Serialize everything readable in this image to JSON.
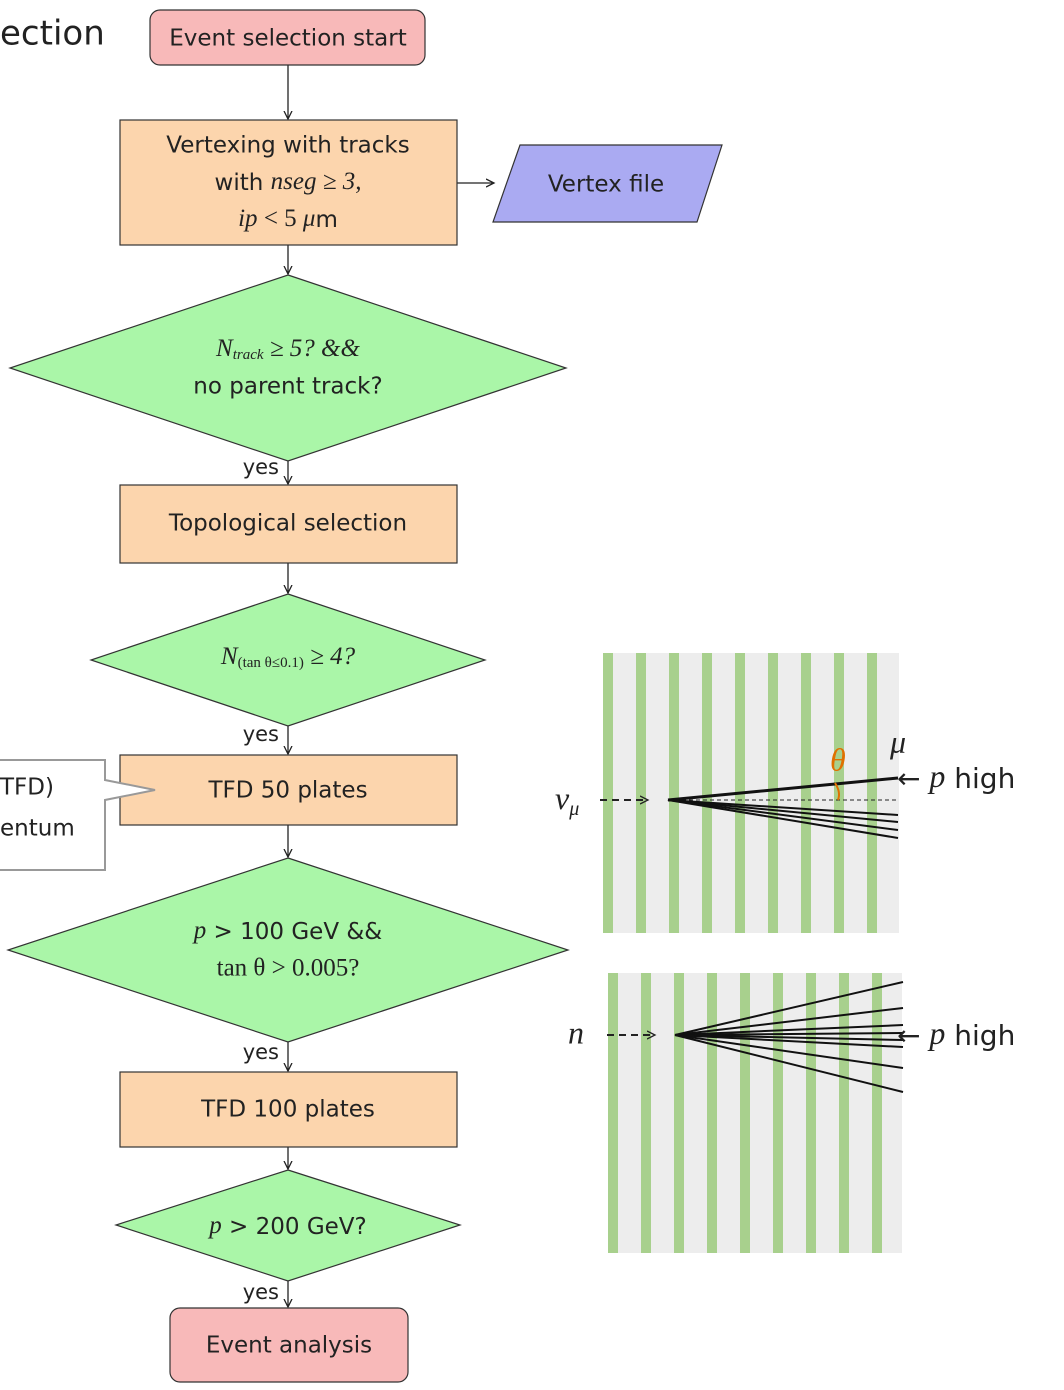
{
  "title": "ection",
  "flow": {
    "start": "Event selection start",
    "vertexing": {
      "line1": "Vertexing with tracks",
      "line2": [
        "with ",
        "nseg",
        " ≥ 3,"
      ],
      "line3": [
        "ip",
        " < 5 ",
        "μ",
        "m"
      ]
    },
    "vertex_file": "Vertex file",
    "condition1": {
      "line1": [
        "N",
        "track",
        " ≥ 5? &&"
      ],
      "line2": "no parent track?"
    },
    "yes1": "yes",
    "topological": "Topological selection",
    "condition2": [
      "N",
      "(tan θ≤0.1)",
      " ≥ 4?"
    ],
    "yes2": "yes",
    "tfd50": "TFD 50 plates",
    "callout": {
      "line1": "TFD)",
      "line2": "entum"
    },
    "condition3": {
      "line1": [
        "p",
        " > 100 GeV &&"
      ],
      "line2": "tan θ > 0.005?"
    },
    "yes3": "yes",
    "tfd100": "TFD 100 plates",
    "condition4": [
      "p",
      " > 200 GeV?"
    ],
    "yes4": "yes",
    "end": "Event analysis"
  },
  "illustrations": {
    "top": {
      "beam": [
        "ν",
        "μ"
      ],
      "angle": "θ",
      "muon": "μ",
      "high_momentum": [
        "← ",
        "p",
        " high"
      ]
    },
    "bottom": {
      "beam": "n",
      "high_momentum": [
        "← ",
        "p",
        " high"
      ]
    }
  }
}
